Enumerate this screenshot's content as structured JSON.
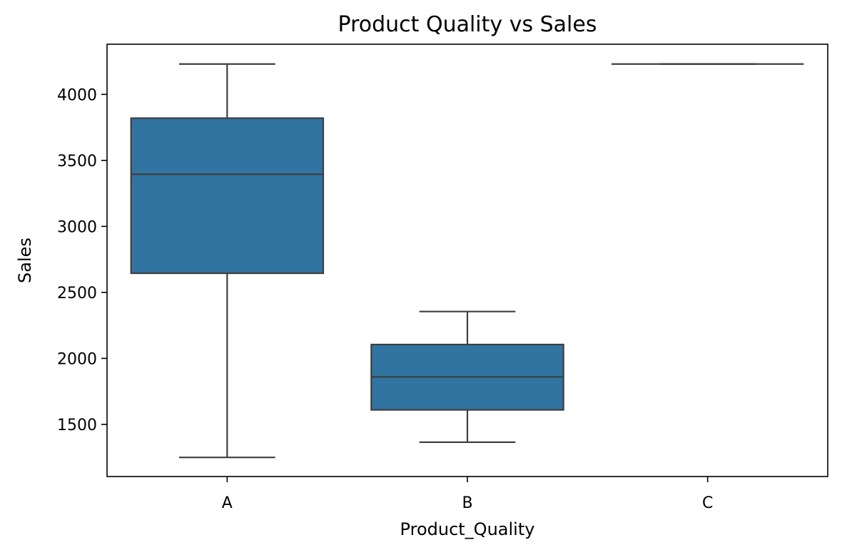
{
  "chart_data": {
    "type": "box",
    "title": "Product Quality vs Sales",
    "xlabel": "Product_Quality",
    "ylabel": "Sales",
    "categories": [
      "A",
      "B",
      "C"
    ],
    "ylim": [
      1105,
      4380
    ],
    "yticks": [
      1500,
      2000,
      2500,
      3000,
      3500,
      4000
    ],
    "boxes": [
      {
        "category": "A",
        "whisker_low": 1250,
        "q1": 2645,
        "median": 3395,
        "q3": 3820,
        "whisker_high": 4230
      },
      {
        "category": "B",
        "whisker_low": 1365,
        "q1": 1610,
        "median": 1860,
        "q3": 2105,
        "whisker_high": 2355
      },
      {
        "category": "C",
        "whisker_low": 4230,
        "q1": 4230,
        "median": 4230,
        "q3": 4230,
        "whisker_high": 4230
      }
    ],
    "box_color": "#3274a1",
    "line_color": "#3f3f3f",
    "grid": false,
    "legend": "none"
  }
}
